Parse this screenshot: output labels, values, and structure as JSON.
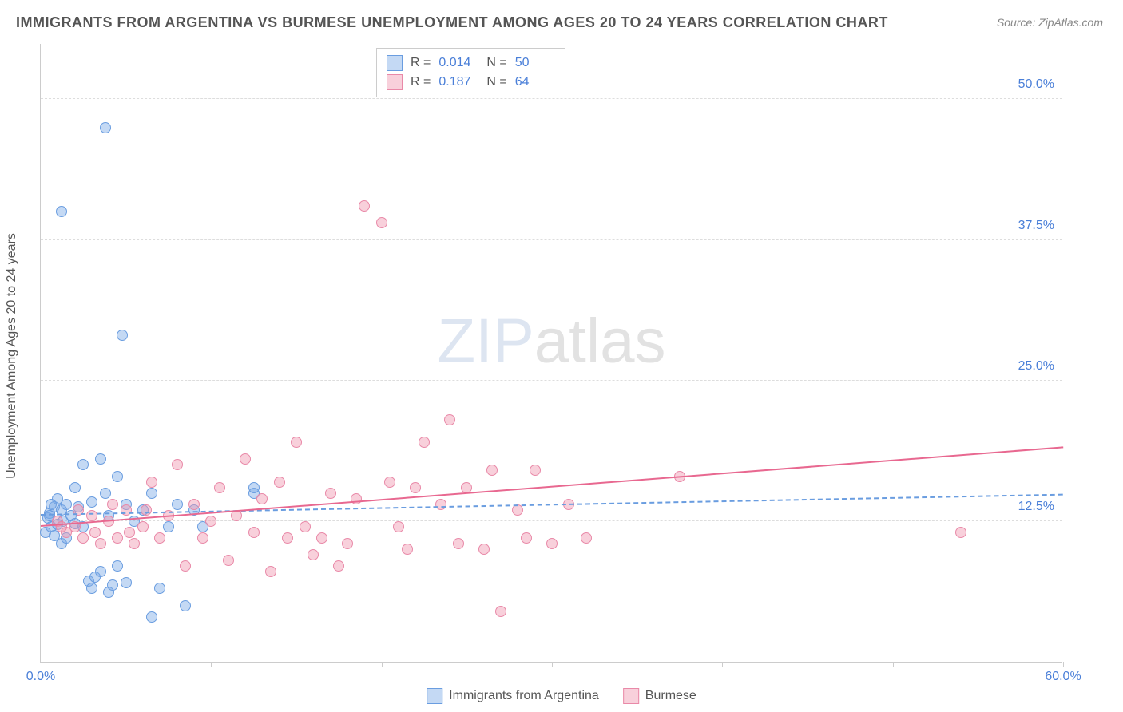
{
  "title": "IMMIGRANTS FROM ARGENTINA VS BURMESE UNEMPLOYMENT AMONG AGES 20 TO 24 YEARS CORRELATION CHART",
  "source": "Source: ZipAtlas.com",
  "ylabel": "Unemployment Among Ages 20 to 24 years",
  "watermark_a": "ZIP",
  "watermark_b": "atlas",
  "chart": {
    "type": "scatter",
    "xlim": [
      0,
      60
    ],
    "ylim": [
      0,
      55
    ],
    "ytick_labels": [
      "12.5%",
      "25.0%",
      "37.5%",
      "50.0%"
    ],
    "ytick_vals": [
      12.5,
      25.0,
      37.5,
      50.0
    ],
    "xtick_min": "0.0%",
    "xtick_max": "60.0%",
    "xtick_marks": [
      10,
      20,
      30,
      40,
      50,
      60
    ],
    "background_color": "#ffffff",
    "grid_color": "#dddddd",
    "marker_size": 14,
    "marker_border": 1,
    "series": [
      {
        "name": "Immigrants from Argentina",
        "fill": "rgba(124,170,230,0.45)",
        "stroke": "#6a9de0",
        "trend_color": "#6a9de0",
        "trend_dash": true,
        "R": "0.014",
        "N": "50",
        "trend_y0": 13.0,
        "trend_y60": 14.8,
        "points": [
          [
            0.3,
            11.5
          ],
          [
            0.4,
            12.8
          ],
          [
            0.5,
            13.2
          ],
          [
            0.6,
            12.0
          ],
          [
            0.8,
            13.8
          ],
          [
            0.8,
            11.2
          ],
          [
            1.0,
            14.5
          ],
          [
            1.0,
            12.2
          ],
          [
            1.2,
            13.5
          ],
          [
            1.2,
            10.5
          ],
          [
            1.3,
            12.5
          ],
          [
            1.5,
            14.0
          ],
          [
            1.5,
            11.0
          ],
          [
            1.8,
            13.0
          ],
          [
            2.0,
            15.5
          ],
          [
            2.0,
            12.3
          ],
          [
            2.2,
            13.8
          ],
          [
            2.5,
            17.5
          ],
          [
            2.5,
            12.0
          ],
          [
            2.8,
            7.2
          ],
          [
            3.0,
            14.2
          ],
          [
            3.0,
            6.5
          ],
          [
            3.2,
            7.5
          ],
          [
            3.5,
            18.0
          ],
          [
            3.5,
            8.0
          ],
          [
            3.8,
            15.0
          ],
          [
            4.0,
            13.0
          ],
          [
            4.0,
            6.2
          ],
          [
            4.2,
            6.8
          ],
          [
            4.5,
            16.5
          ],
          [
            4.5,
            8.5
          ],
          [
            4.8,
            29.0
          ],
          [
            5.0,
            14.0
          ],
          [
            5.0,
            7.0
          ],
          [
            5.5,
            12.5
          ],
          [
            6.0,
            13.5
          ],
          [
            6.5,
            15.0
          ],
          [
            6.5,
            4.0
          ],
          [
            7.0,
            6.5
          ],
          [
            7.5,
            12.0
          ],
          [
            8.0,
            14.0
          ],
          [
            8.5,
            5.0
          ],
          [
            9.0,
            13.5
          ],
          [
            9.5,
            12.0
          ],
          [
            12.5,
            15.0
          ],
          [
            12.5,
            15.5
          ],
          [
            3.8,
            47.5
          ],
          [
            1.2,
            40.0
          ],
          [
            0.5,
            13.0
          ],
          [
            0.6,
            14.0
          ]
        ]
      },
      {
        "name": "Burmese",
        "fill": "rgba(240,150,175,0.45)",
        "stroke": "#e989a8",
        "trend_color": "#e86890",
        "trend_dash": false,
        "R": "0.187",
        "N": "64",
        "trend_y0": 12.0,
        "trend_y60": 19.0,
        "points": [
          [
            1.0,
            12.5
          ],
          [
            1.5,
            11.5
          ],
          [
            2.0,
            12.0
          ],
          [
            2.5,
            11.0
          ],
          [
            3.0,
            13.0
          ],
          [
            3.5,
            10.5
          ],
          [
            4.0,
            12.5
          ],
          [
            4.5,
            11.0
          ],
          [
            5.0,
            13.5
          ],
          [
            5.5,
            10.5
          ],
          [
            6.0,
            12.0
          ],
          [
            6.5,
            16.0
          ],
          [
            7.0,
            11.0
          ],
          [
            7.5,
            13.0
          ],
          [
            8.0,
            17.5
          ],
          [
            8.5,
            8.5
          ],
          [
            9.0,
            14.0
          ],
          [
            9.5,
            11.0
          ],
          [
            10.0,
            12.5
          ],
          [
            10.5,
            15.5
          ],
          [
            11.0,
            9.0
          ],
          [
            11.5,
            13.0
          ],
          [
            12.0,
            18.0
          ],
          [
            12.5,
            11.5
          ],
          [
            13.0,
            14.5
          ],
          [
            13.5,
            8.0
          ],
          [
            14.0,
            16.0
          ],
          [
            14.5,
            11.0
          ],
          [
            15.0,
            19.5
          ],
          [
            15.5,
            12.0
          ],
          [
            16.0,
            9.5
          ],
          [
            16.5,
            11.0
          ],
          [
            17.0,
            15.0
          ],
          [
            17.5,
            8.5
          ],
          [
            18.0,
            10.5
          ],
          [
            18.5,
            14.5
          ],
          [
            19.0,
            40.5
          ],
          [
            20.0,
            39.0
          ],
          [
            20.5,
            16.0
          ],
          [
            21.0,
            12.0
          ],
          [
            21.5,
            10.0
          ],
          [
            22.0,
            15.5
          ],
          [
            22.5,
            19.5
          ],
          [
            23.5,
            14.0
          ],
          [
            24.0,
            21.5
          ],
          [
            24.5,
            10.5
          ],
          [
            25.0,
            15.5
          ],
          [
            26.0,
            10.0
          ],
          [
            26.5,
            17.0
          ],
          [
            27.0,
            4.5
          ],
          [
            28.0,
            13.5
          ],
          [
            28.5,
            11.0
          ],
          [
            29.0,
            17.0
          ],
          [
            30.0,
            10.5
          ],
          [
            31.0,
            14.0
          ],
          [
            32.0,
            11.0
          ],
          [
            37.5,
            16.5
          ],
          [
            54.0,
            11.5
          ],
          [
            1.2,
            12.0
          ],
          [
            2.2,
            13.5
          ],
          [
            3.2,
            11.5
          ],
          [
            4.2,
            14.0
          ],
          [
            5.2,
            11.5
          ],
          [
            6.2,
            13.5
          ]
        ]
      }
    ]
  },
  "stats_legend": {
    "R_label": "R =",
    "N_label": "N ="
  },
  "bottom_legend": {
    "s1": "Immigrants from Argentina",
    "s2": "Burmese"
  }
}
